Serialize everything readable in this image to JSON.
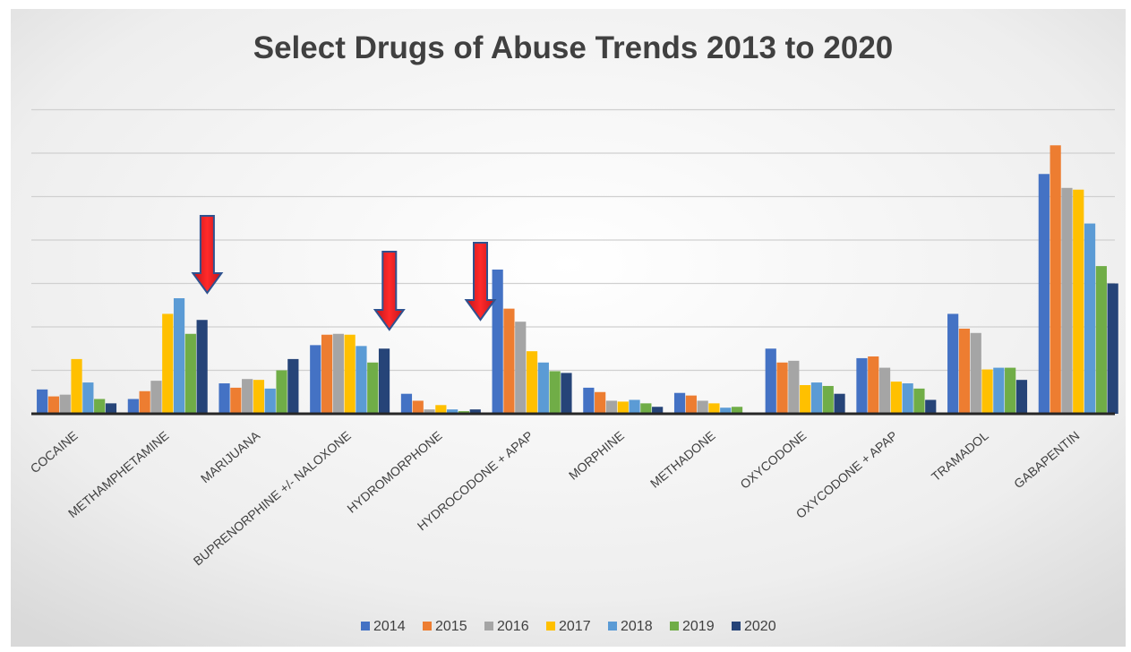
{
  "chart_data": {
    "type": "bar",
    "title": "Select Drugs of Abuse Trends 2013 to 2020",
    "categories": [
      "COCAINE",
      "METHAMPHETAMINE",
      "MARIJUANA",
      "BUPRENORPHINE +/- NALOXONE",
      "HYDROMORPHONE",
      "HYDROCODONE + APAP",
      "MORPHINE",
      "METHADONE",
      "OXYCODONE",
      "OXYCODONE + APAP",
      "TRAMADOL",
      "GABAPENTIN"
    ],
    "series": [
      {
        "name": "2014",
        "color": "#4472C4",
        "values": [
          28,
          17,
          35,
          79,
          23,
          166,
          30,
          24,
          75,
          64,
          115,
          276
        ]
      },
      {
        "name": "2015",
        "color": "#ED7D31",
        "values": [
          20,
          26,
          30,
          91,
          15,
          121,
          25,
          21,
          59,
          66,
          98,
          309
        ]
      },
      {
        "name": "2016",
        "color": "#A5A5A5",
        "values": [
          22,
          38,
          40,
          92,
          5,
          106,
          15,
          15,
          61,
          53,
          93,
          260
        ]
      },
      {
        "name": "2017",
        "color": "#FFC000",
        "values": [
          63,
          115,
          39,
          91,
          10,
          72,
          14,
          12,
          33,
          37,
          51,
          258
        ]
      },
      {
        "name": "2018",
        "color": "#5B9BD5",
        "values": [
          36,
          133,
          29,
          78,
          5,
          59,
          16,
          7,
          36,
          35,
          53,
          219
        ]
      },
      {
        "name": "2019",
        "color": "#70AD47",
        "values": [
          17,
          92,
          50,
          59,
          3,
          49,
          12,
          8,
          32,
          29,
          53,
          170
        ]
      },
      {
        "name": "2020",
        "color": "#264478",
        "values": [
          12,
          108,
          63,
          75,
          5,
          47,
          8,
          0,
          23,
          16,
          39,
          150
        ]
      }
    ],
    "ylim": [
      0,
      350
    ],
    "gridlines": [
      50,
      100,
      150,
      200,
      250,
      300,
      350
    ],
    "grid": true,
    "y_tick_labels_shown": false,
    "legend_position": "bottom",
    "annotations": [
      {
        "type": "arrow",
        "color": "#E31B23",
        "direction": "down",
        "target_category": "METHAMPHETAMINE"
      },
      {
        "type": "arrow",
        "color": "#E31B23",
        "direction": "down",
        "target_category": "BUPRENORPHINE +/- NALOXONE"
      },
      {
        "type": "arrow",
        "color": "#E31B23",
        "direction": "down",
        "target_category": "HYDROMORPHONE"
      }
    ]
  }
}
